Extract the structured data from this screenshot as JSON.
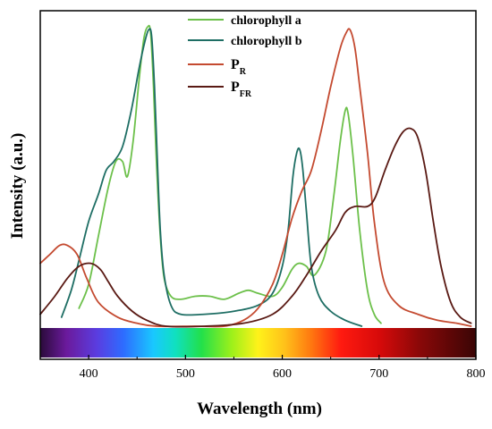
{
  "chart_data": {
    "type": "line",
    "xlabel": "Wavelength (nm)",
    "ylabel": "Intensity (a.u.)",
    "xlim": [
      350,
      800
    ],
    "ylim": [
      0,
      1
    ],
    "x_ticks": [
      400,
      500,
      600,
      700,
      800
    ],
    "y_ticks_shown": false,
    "grid": false,
    "legend_position": "top-center",
    "spectrum_bar": true,
    "series": [
      {
        "name": "chlorophyll a",
        "legend_main": "chlorophyll a",
        "legend_sub": "",
        "color": "#6cc04a",
        "points": [
          [
            390,
            0.06
          ],
          [
            400,
            0.14
          ],
          [
            410,
            0.3
          ],
          [
            420,
            0.46
          ],
          [
            428,
            0.55
          ],
          [
            435,
            0.55
          ],
          [
            440,
            0.5
          ],
          [
            446,
            0.62
          ],
          [
            452,
            0.82
          ],
          [
            457,
            0.96
          ],
          [
            461,
            1.0
          ],
          [
            464,
            0.98
          ],
          [
            467,
            0.8
          ],
          [
            470,
            0.55
          ],
          [
            474,
            0.3
          ],
          [
            478,
            0.16
          ],
          [
            485,
            0.1
          ],
          [
            495,
            0.09
          ],
          [
            510,
            0.1
          ],
          [
            525,
            0.1
          ],
          [
            540,
            0.09
          ],
          [
            555,
            0.11
          ],
          [
            565,
            0.12
          ],
          [
            575,
            0.11
          ],
          [
            590,
            0.1
          ],
          [
            600,
            0.13
          ],
          [
            610,
            0.19
          ],
          [
            617,
            0.21
          ],
          [
            625,
            0.2
          ],
          [
            633,
            0.17
          ],
          [
            645,
            0.25
          ],
          [
            653,
            0.43
          ],
          [
            660,
            0.62
          ],
          [
            665,
            0.72
          ],
          [
            668,
            0.71
          ],
          [
            673,
            0.57
          ],
          [
            680,
            0.32
          ],
          [
            688,
            0.12
          ],
          [
            695,
            0.04
          ],
          [
            702,
            0.01
          ]
        ]
      },
      {
        "name": "chlorophyll b",
        "legend_main": "chlorophyll b",
        "legend_sub": "",
        "color": "#1e6e64",
        "points": [
          [
            372,
            0.03
          ],
          [
            382,
            0.12
          ],
          [
            390,
            0.22
          ],
          [
            400,
            0.35
          ],
          [
            410,
            0.44
          ],
          [
            418,
            0.52
          ],
          [
            426,
            0.55
          ],
          [
            435,
            0.6
          ],
          [
            444,
            0.72
          ],
          [
            452,
            0.86
          ],
          [
            458,
            0.95
          ],
          [
            462,
            0.99
          ],
          [
            465,
            0.97
          ],
          [
            468,
            0.8
          ],
          [
            471,
            0.55
          ],
          [
            474,
            0.32
          ],
          [
            478,
            0.17
          ],
          [
            485,
            0.07
          ],
          [
            495,
            0.04
          ],
          [
            520,
            0.04
          ],
          [
            550,
            0.05
          ],
          [
            575,
            0.07
          ],
          [
            590,
            0.11
          ],
          [
            600,
            0.2
          ],
          [
            606,
            0.32
          ],
          [
            611,
            0.5
          ],
          [
            615,
            0.58
          ],
          [
            618,
            0.59
          ],
          [
            621,
            0.53
          ],
          [
            625,
            0.38
          ],
          [
            630,
            0.2
          ],
          [
            638,
            0.1
          ],
          [
            650,
            0.05
          ],
          [
            665,
            0.02
          ],
          [
            682,
            0.0
          ]
        ]
      },
      {
        "name": "P_R",
        "legend_main": "P",
        "legend_sub": "R",
        "color": "#c44a30",
        "points": [
          [
            350,
            0.21
          ],
          [
            360,
            0.24
          ],
          [
            370,
            0.27
          ],
          [
            378,
            0.27
          ],
          [
            388,
            0.24
          ],
          [
            398,
            0.16
          ],
          [
            410,
            0.08
          ],
          [
            430,
            0.03
          ],
          [
            450,
            0.01
          ],
          [
            470,
            0.0
          ],
          [
            510,
            0.0
          ],
          [
            540,
            0.0
          ],
          [
            560,
            0.02
          ],
          [
            575,
            0.06
          ],
          [
            590,
            0.14
          ],
          [
            600,
            0.24
          ],
          [
            610,
            0.36
          ],
          [
            620,
            0.45
          ],
          [
            630,
            0.52
          ],
          [
            640,
            0.65
          ],
          [
            650,
            0.8
          ],
          [
            660,
            0.93
          ],
          [
            666,
            0.98
          ],
          [
            670,
            0.99
          ],
          [
            675,
            0.93
          ],
          [
            680,
            0.8
          ],
          [
            688,
            0.58
          ],
          [
            695,
            0.35
          ],
          [
            705,
            0.15
          ],
          [
            720,
            0.07
          ],
          [
            740,
            0.04
          ],
          [
            760,
            0.02
          ],
          [
            780,
            0.01
          ],
          [
            795,
            0.0
          ]
        ]
      },
      {
        "name": "P_FR",
        "legend_main": "P",
        "legend_sub": "FR",
        "color": "#5a1a14",
        "points": [
          [
            350,
            0.04
          ],
          [
            365,
            0.1
          ],
          [
            378,
            0.16
          ],
          [
            390,
            0.2
          ],
          [
            402,
            0.21
          ],
          [
            412,
            0.19
          ],
          [
            420,
            0.15
          ],
          [
            430,
            0.1
          ],
          [
            445,
            0.05
          ],
          [
            460,
            0.02
          ],
          [
            480,
            0.0
          ],
          [
            520,
            0.0
          ],
          [
            560,
            0.01
          ],
          [
            590,
            0.04
          ],
          [
            610,
            0.1
          ],
          [
            625,
            0.17
          ],
          [
            640,
            0.25
          ],
          [
            655,
            0.32
          ],
          [
            665,
            0.38
          ],
          [
            675,
            0.4
          ],
          [
            688,
            0.4
          ],
          [
            696,
            0.43
          ],
          [
            706,
            0.52
          ],
          [
            716,
            0.6
          ],
          [
            725,
            0.65
          ],
          [
            733,
            0.66
          ],
          [
            740,
            0.63
          ],
          [
            748,
            0.52
          ],
          [
            756,
            0.35
          ],
          [
            764,
            0.2
          ],
          [
            774,
            0.08
          ],
          [
            784,
            0.03
          ],
          [
            795,
            0.01
          ]
        ]
      }
    ]
  }
}
